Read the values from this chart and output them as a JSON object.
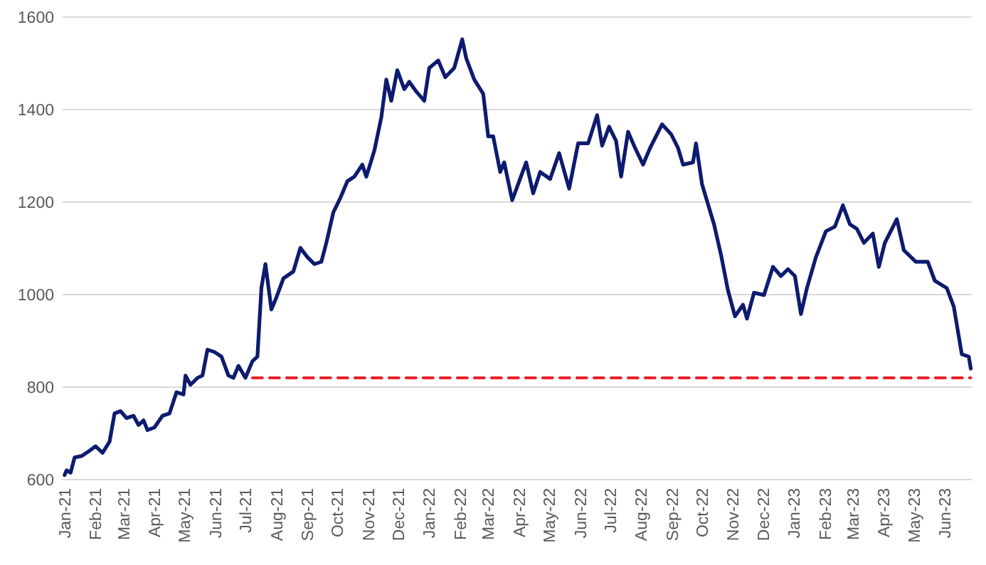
{
  "chart_data": {
    "type": "line",
    "xlim": [
      "2020-12-30",
      "2023-06-28"
    ],
    "ylim": [
      600,
      1600
    ],
    "yticks": [
      600,
      800,
      1000,
      1200,
      1400,
      1600
    ],
    "xticks": [
      {
        "value": "2021-01-01",
        "label": "Jan-21"
      },
      {
        "value": "2021-02-01",
        "label": "Feb-21"
      },
      {
        "value": "2021-03-01",
        "label": "Mar-21"
      },
      {
        "value": "2021-04-01",
        "label": "Apr-21"
      },
      {
        "value": "2021-05-01",
        "label": "May-21"
      },
      {
        "value": "2021-06-01",
        "label": "Jun-21"
      },
      {
        "value": "2021-07-01",
        "label": "Jul-21"
      },
      {
        "value": "2021-08-01",
        "label": "Aug-21"
      },
      {
        "value": "2021-09-01",
        "label": "Sep-21"
      },
      {
        "value": "2021-10-01",
        "label": "Oct-21"
      },
      {
        "value": "2021-11-01",
        "label": "Nov-21"
      },
      {
        "value": "2021-12-01",
        "label": "Dec-21"
      },
      {
        "value": "2022-01-01",
        "label": "Jan-22"
      },
      {
        "value": "2022-02-01",
        "label": "Feb-22"
      },
      {
        "value": "2022-03-01",
        "label": "Mar-22"
      },
      {
        "value": "2022-04-01",
        "label": "Apr-22"
      },
      {
        "value": "2022-05-01",
        "label": "May-22"
      },
      {
        "value": "2022-06-01",
        "label": "Jun-22"
      },
      {
        "value": "2022-07-01",
        "label": "Jul-22"
      },
      {
        "value": "2022-08-01",
        "label": "Aug-22"
      },
      {
        "value": "2022-09-01",
        "label": "Sep-22"
      },
      {
        "value": "2022-10-01",
        "label": "Oct-22"
      },
      {
        "value": "2022-11-01",
        "label": "Nov-22"
      },
      {
        "value": "2022-12-01",
        "label": "Dec-22"
      },
      {
        "value": "2023-01-01",
        "label": "Jan-23"
      },
      {
        "value": "2023-02-01",
        "label": "Feb-23"
      },
      {
        "value": "2023-03-01",
        "label": "Mar-23"
      },
      {
        "value": "2023-04-01",
        "label": "Apr-23"
      },
      {
        "value": "2023-05-01",
        "label": "May-23"
      },
      {
        "value": "2023-06-01",
        "label": "Jun-23"
      }
    ],
    "grid": "y",
    "marker": "none",
    "series": [
      {
        "color": "#0d1b6e",
        "line_style": "solid",
        "x": [
          "2021-01-01",
          "2021-01-03",
          "2021-01-07",
          "2021-01-11",
          "2021-01-18",
          "2021-01-25",
          "2021-02-01",
          "2021-02-08",
          "2021-02-15",
          "2021-02-20",
          "2021-02-26",
          "2021-03-04",
          "2021-03-11",
          "2021-03-16",
          "2021-03-21",
          "2021-03-25",
          "2021-04-01",
          "2021-04-09",
          "2021-04-16",
          "2021-04-23",
          "2021-04-30",
          "2021-05-02",
          "2021-05-07",
          "2021-05-14",
          "2021-05-19",
          "2021-05-24",
          "2021-05-31",
          "2021-06-07",
          "2021-06-14",
          "2021-06-19",
          "2021-06-24",
          "2021-07-01",
          "2021-07-08",
          "2021-07-13",
          "2021-07-17",
          "2021-07-21",
          "2021-07-27",
          "2021-08-01",
          "2021-08-08",
          "2021-08-18",
          "2021-08-25",
          "2021-09-01",
          "2021-09-08",
          "2021-09-15",
          "2021-09-20",
          "2021-09-27",
          "2021-10-04",
          "2021-10-11",
          "2021-10-18",
          "2021-10-26",
          "2021-10-30",
          "2021-11-07",
          "2021-11-14",
          "2021-11-19",
          "2021-11-24",
          "2021-11-30",
          "2021-12-07",
          "2021-12-12",
          "2021-12-19",
          "2021-12-27",
          "2022-01-01",
          "2022-01-10",
          "2022-01-17",
          "2022-01-26",
          "2022-02-03",
          "2022-02-07",
          "2022-02-15",
          "2022-02-24",
          "2022-03-01",
          "2022-03-06",
          "2022-03-13",
          "2022-03-17",
          "2022-03-25",
          "2022-04-01",
          "2022-04-08",
          "2022-04-15",
          "2022-04-22",
          "2022-05-02",
          "2022-05-11",
          "2022-05-21",
          "2022-05-30",
          "2022-06-09",
          "2022-06-18",
          "2022-06-23",
          "2022-06-30",
          "2022-07-07",
          "2022-07-12",
          "2022-07-19",
          "2022-07-26",
          "2022-08-03",
          "2022-08-10",
          "2022-08-22",
          "2022-08-31",
          "2022-09-07",
          "2022-09-12",
          "2022-09-22",
          "2022-09-25",
          "2022-10-01",
          "2022-10-13",
          "2022-10-20",
          "2022-10-27",
          "2022-11-03",
          "2022-11-11",
          "2022-11-15",
          "2022-11-22",
          "2022-12-02",
          "2022-12-11",
          "2022-12-19",
          "2022-12-26",
          "2023-01-02",
          "2023-01-08",
          "2023-01-14",
          "2023-01-23",
          "2023-02-02",
          "2023-02-11",
          "2023-02-19",
          "2023-02-26",
          "2023-03-05",
          "2023-03-12",
          "2023-03-21",
          "2023-03-27",
          "2023-04-02",
          "2023-04-14",
          "2023-04-21",
          "2023-05-03",
          "2023-05-15",
          "2023-05-22",
          "2023-06-03",
          "2023-06-10",
          "2023-06-18",
          "2023-06-25",
          "2023-06-27"
        ],
        "values": [
          610,
          620,
          615,
          648,
          651,
          661,
          672,
          658,
          682,
          743,
          748,
          733,
          738,
          718,
          728,
          707,
          713,
          738,
          743,
          789,
          784,
          825,
          805,
          820,
          825,
          881,
          876,
          866,
          825,
          820,
          846,
          820,
          856,
          866,
          1015,
          1066,
          968,
          994,
          1035,
          1050,
          1101,
          1081,
          1066,
          1071,
          1112,
          1178,
          1209,
          1245,
          1255,
          1281,
          1255,
          1311,
          1383,
          1465,
          1419,
          1485,
          1444,
          1460,
          1439,
          1419,
          1490,
          1506,
          1470,
          1490,
          1552,
          1511,
          1465,
          1434,
          1342,
          1342,
          1265,
          1286,
          1204,
          1245,
          1286,
          1219,
          1265,
          1250,
          1306,
          1229,
          1327,
          1327,
          1388,
          1322,
          1363,
          1332,
          1255,
          1352,
          1317,
          1281,
          1317,
          1368,
          1347,
          1317,
          1281,
          1286,
          1327,
          1239,
          1152,
          1086,
          1009,
          953,
          978,
          948,
          1004,
          999,
          1060,
          1040,
          1055,
          1040,
          958,
          1014,
          1081,
          1137,
          1147,
          1193,
          1152,
          1142,
          1112,
          1132,
          1060,
          1112,
          1163,
          1096,
          1071,
          1071,
          1030,
          1014,
          974,
          871,
          866,
          840
        ]
      },
      {
        "color": "#e8212a",
        "line_style": "dashed",
        "x": [
          "2021-07-08",
          "2023-06-27"
        ],
        "values": [
          820,
          820
        ]
      }
    ]
  }
}
